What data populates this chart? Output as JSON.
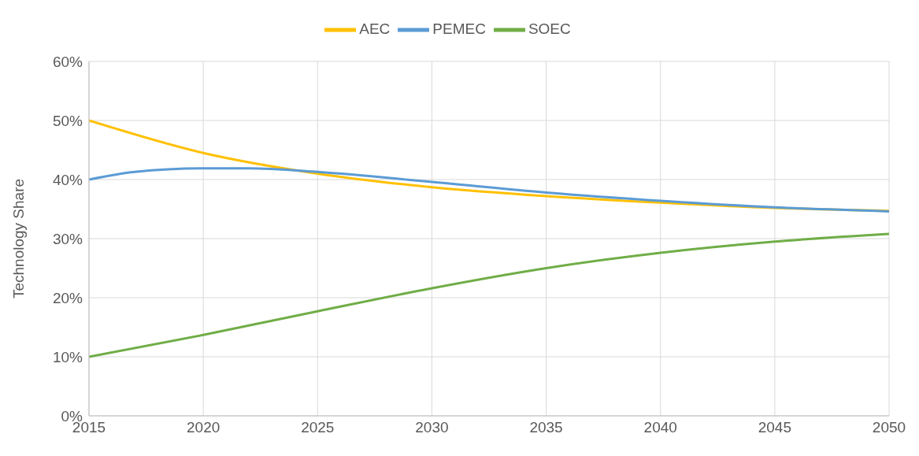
{
  "chart_data": {
    "type": "line",
    "ylabel": "Technology Share",
    "xlim": [
      2015,
      2050
    ],
    "xticks": [
      2015,
      2020,
      2025,
      2030,
      2035,
      2040,
      2045,
      2050
    ],
    "ylim": [
      0,
      60
    ],
    "yticks": [
      {
        "value": 0,
        "label": "0%"
      },
      {
        "value": 10,
        "label": "10%"
      },
      {
        "value": 20,
        "label": "20%"
      },
      {
        "value": 30,
        "label": "30%"
      },
      {
        "value": 40,
        "label": "40%"
      },
      {
        "value": 50,
        "label": "50%"
      },
      {
        "value": 60,
        "label": "60%"
      }
    ],
    "grid": true,
    "legend": "top",
    "marker": "none",
    "line_style": "solid",
    "series": [
      {
        "name": "AEC",
        "color": "#ffc000",
        "x": [
          2015,
          2020,
          2025,
          2030,
          2035,
          2040,
          2045,
          2050
        ],
        "values": [
          50,
          44.5,
          41,
          38.7,
          37.2,
          36.1,
          35.2,
          34.7
        ]
      },
      {
        "name": "PEMEC",
        "color": "#5b9bd5",
        "x": [
          2015,
          2017,
          2020,
          2022,
          2025,
          2030,
          2035,
          2040,
          2045,
          2050
        ],
        "values": [
          40,
          41.3,
          41.9,
          41.9,
          41.3,
          39.6,
          37.8,
          36.4,
          35.3,
          34.6
        ]
      },
      {
        "name": "SOEC",
        "color": "#70ad47",
        "x": [
          2015,
          2020,
          2025,
          2030,
          2035,
          2040,
          2045,
          2050
        ],
        "values": [
          10,
          13.7,
          17.7,
          21.6,
          25,
          27.6,
          29.5,
          30.8
        ]
      }
    ]
  }
}
